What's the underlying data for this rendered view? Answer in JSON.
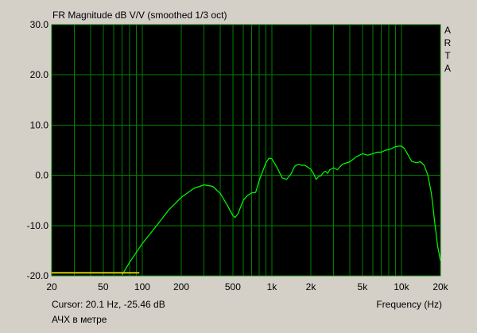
{
  "chart_data": {
    "type": "line",
    "title": "FR Magnitude dB V/V (smoothed 1/3 oct)",
    "xlabel": "Frequency (Hz)",
    "ylabel": "",
    "x_scale": "log",
    "xlim": [
      20,
      20000
    ],
    "ylim": [
      -20,
      30
    ],
    "x_ticks": [
      20,
      50,
      100,
      200,
      500,
      1000,
      2000,
      5000,
      10000,
      20000
    ],
    "x_tick_labels": [
      "20",
      "50",
      "100",
      "200",
      "500",
      "1k",
      "2k",
      "5k",
      "10k",
      "20k"
    ],
    "y_ticks": [
      -20,
      -10,
      0,
      10,
      20,
      30
    ],
    "y_tick_labels": [
      "-20.0",
      "-10.0",
      "0.0",
      "10.0",
      "20.0",
      "30.0"
    ],
    "grid": true,
    "background_color": "#000000",
    "grid_color": "#008000",
    "series": [
      {
        "color": "#00ff00",
        "x": [
          70,
          80,
          100,
          130,
          160,
          200,
          250,
          300,
          350,
          400,
          450,
          500,
          520,
          550,
          600,
          650,
          700,
          750,
          800,
          850,
          900,
          950,
          1000,
          1100,
          1200,
          1300,
          1400,
          1500,
          1600,
          1700,
          1800,
          2000,
          2100,
          2200,
          2300,
          2400,
          2500,
          2600,
          2700,
          2800,
          3000,
          3200,
          3500,
          4000,
          4500,
          5000,
          5500,
          6000,
          6500,
          7000,
          7500,
          8000,
          8500,
          9000,
          9500,
          10000,
          10500,
          11000,
          12000,
          13000,
          14000,
          15000,
          16000,
          17000,
          17500,
          18000,
          18500,
          19000,
          20000
        ],
        "values": [
          -19.8,
          -17.3,
          -13.6,
          -9.9,
          -6.9,
          -4.4,
          -2.6,
          -1.9,
          -2.2,
          -3.6,
          -5.8,
          -8.0,
          -8.4,
          -7.6,
          -5.0,
          -4.0,
          -3.5,
          -3.4,
          -1.0,
          0.8,
          2.5,
          3.4,
          3.3,
          1.5,
          -0.5,
          -0.8,
          0.2,
          1.8,
          2.2,
          2.0,
          2.0,
          1.2,
          0.3,
          -0.8,
          -0.2,
          -0.1,
          0.6,
          0.8,
          0.4,
          1.1,
          1.5,
          1.1,
          2.2,
          2.7,
          3.7,
          4.3,
          4.0,
          4.3,
          4.6,
          4.6,
          5.0,
          5.1,
          5.4,
          5.7,
          5.8,
          5.8,
          5.4,
          4.5,
          2.8,
          2.5,
          2.7,
          2.0,
          0.0,
          -3.5,
          -6.0,
          -9.0,
          -11.5,
          -14.0,
          -17.0
        ]
      },
      {
        "color": "#d8c800",
        "x": [
          20,
          95
        ],
        "values": [
          -19.4,
          -19.4
        ]
      }
    ]
  },
  "side_label": [
    "A",
    "R",
    "T",
    "A"
  ],
  "status": {
    "cursor_text": "Cursor: 20.1 Hz, -25.46 dB",
    "caption": "АЧХ в метре"
  }
}
